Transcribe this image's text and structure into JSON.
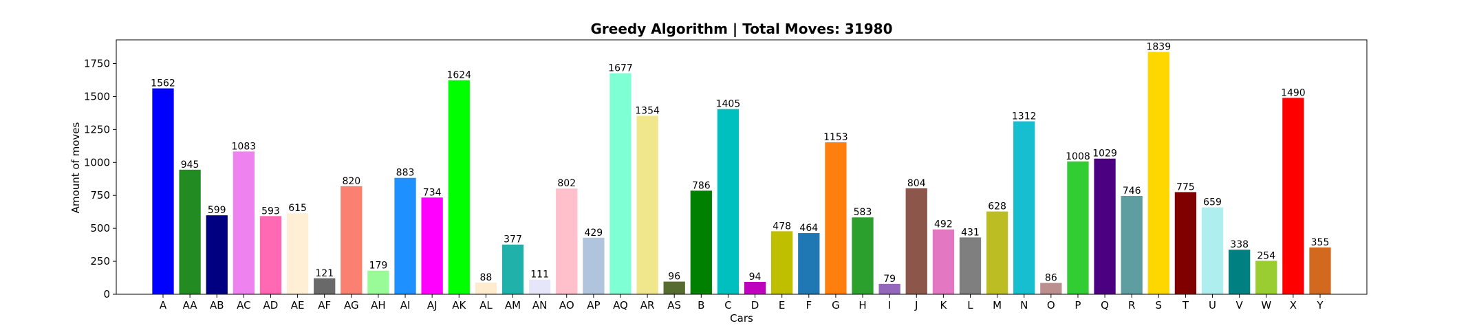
{
  "chart_data": {
    "type": "bar",
    "title": "Greedy Algorithm | Total Moves: 31980",
    "xlabel": "Cars",
    "ylabel": "Amount of moves",
    "ylim": [
      0,
      1930
    ],
    "yticks": [
      0,
      250,
      500,
      750,
      1000,
      1250,
      1500,
      1750
    ],
    "grid": false,
    "legend": "none",
    "categories": [
      "A",
      "AA",
      "AB",
      "AC",
      "AD",
      "AE",
      "AF",
      "AG",
      "AH",
      "AI",
      "AJ",
      "AK",
      "AL",
      "AM",
      "AN",
      "AO",
      "AP",
      "AQ",
      "AR",
      "AS",
      "B",
      "C",
      "D",
      "E",
      "F",
      "G",
      "H",
      "I",
      "J",
      "K",
      "L",
      "M",
      "N",
      "O",
      "P",
      "Q",
      "R",
      "S",
      "T",
      "U",
      "V",
      "W",
      "X",
      "Y"
    ],
    "values": [
      1562,
      945,
      599,
      1083,
      593,
      615,
      121,
      820,
      179,
      883,
      734,
      1624,
      88,
      377,
      111,
      802,
      429,
      1677,
      1354,
      96,
      786,
      1405,
      94,
      478,
      464,
      1153,
      583,
      79,
      804,
      492,
      431,
      628,
      1312,
      86,
      1008,
      1029,
      746,
      1839,
      775,
      659,
      338,
      254,
      1490,
      355
    ],
    "colors": [
      "#0000ff",
      "#228b22",
      "#000080",
      "#ee82ee",
      "#ff69b4",
      "#ffefd5",
      "#696969",
      "#fa8072",
      "#98fb98",
      "#1e90ff",
      "#ff00ff",
      "#00ff00",
      "#ffebcd",
      "#20b2aa",
      "#e6e6fa",
      "#ffc0cb",
      "#b0c4de",
      "#7fffd4",
      "#f0e68c",
      "#556b2f",
      "#008000",
      "#00bfbf",
      "#bf00bf",
      "#bfbf00",
      "#1f77b4",
      "#ff7f0e",
      "#2ca02c",
      "#9467bd",
      "#8c564b",
      "#e377c2",
      "#7f7f7f",
      "#bcbd22",
      "#17becf",
      "#bc8f8f",
      "#32cd32",
      "#4b0082",
      "#5f9ea0",
      "#ffd700",
      "#800000",
      "#afeeee",
      "#008080",
      "#9acd32",
      "#ff0000",
      "#d2691e"
    ]
  }
}
